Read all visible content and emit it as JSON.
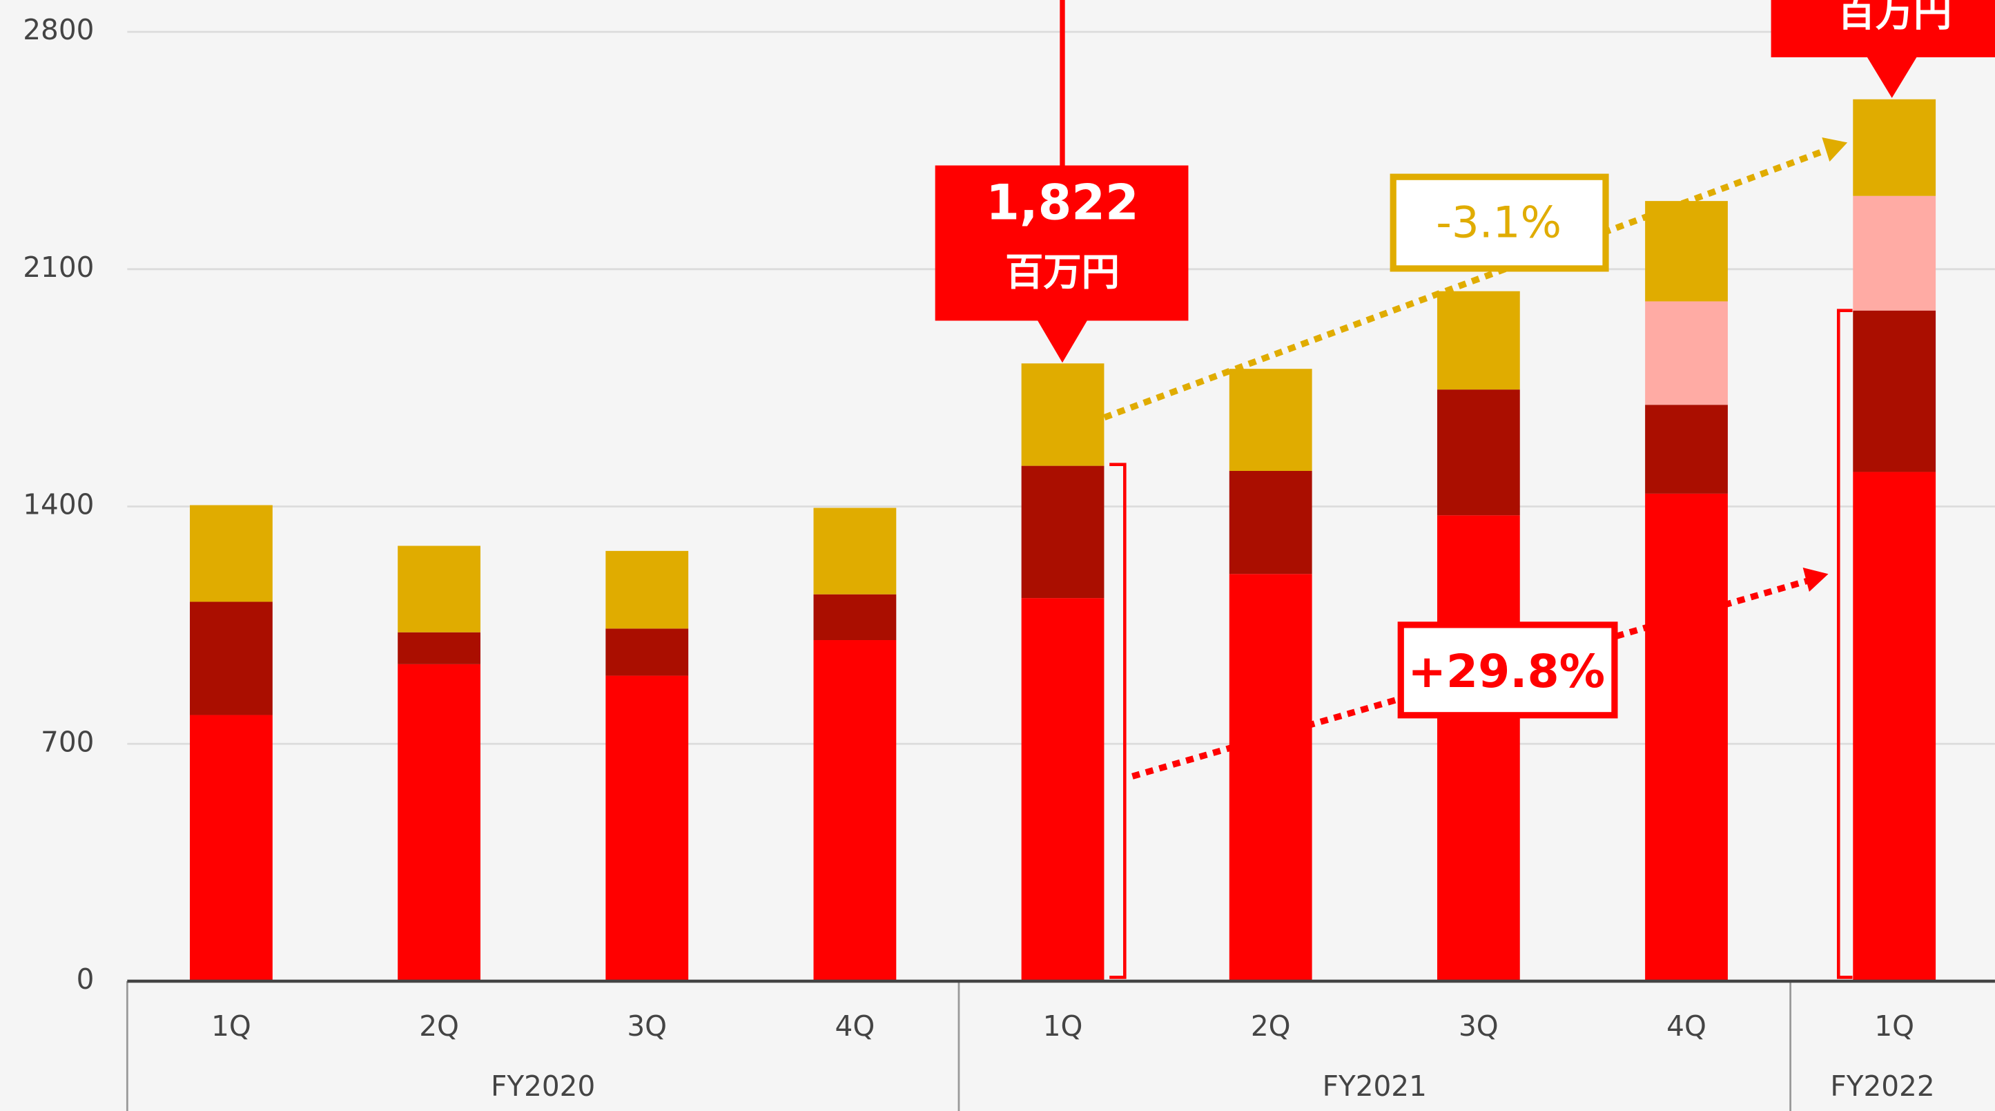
{
  "chart_data": {
    "type": "stacked_bar",
    "groups": [
      {
        "name": "FY2020",
        "categories": [
          "1Q",
          "2Q",
          "3Q",
          "4Q"
        ]
      },
      {
        "name": "FY2021",
        "categories": [
          "1Q",
          "2Q",
          "3Q",
          "4Q"
        ]
      },
      {
        "name": "FY2022",
        "categories": [
          "1Q"
        ]
      }
    ],
    "series": [
      {
        "color": "#ff0000",
        "values": [
          785,
          935,
          901,
          1006,
          1130,
          1201,
          1374,
          1438,
          1502
        ]
      },
      {
        "color": "#aa0e00",
        "values": [
          334,
          94,
          139,
          135,
          390,
          304,
          371,
          262,
          476
        ]
      },
      {
        "color": "#ffaba4",
        "values": [
          null,
          null,
          null,
          null,
          null,
          null,
          null,
          305,
          338
        ]
      },
      {
        "color": "#e0ac00",
        "values": [
          285,
          255,
          229,
          255,
          302,
          301,
          290,
          296,
          285
        ]
      }
    ],
    "ylim": [
      0,
      2800
    ],
    "yticks": [
      0,
      700,
      1400,
      2100,
      2800
    ],
    "grid": true,
    "annotations": {
      "callout_value": "1,822",
      "callout_unit": "百万円",
      "callout2_unit": "百万円",
      "gold_change": "-3.1%",
      "red_change": "+29.8%"
    }
  }
}
